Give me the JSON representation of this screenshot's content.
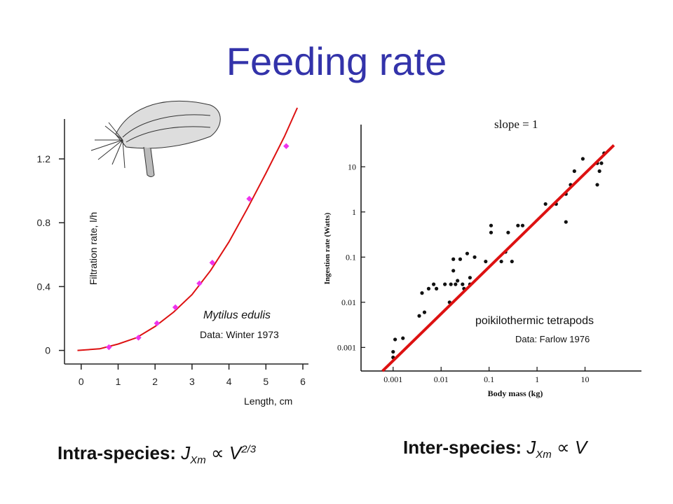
{
  "title": "Feeding rate",
  "colors": {
    "title": "#3333aa",
    "left_points": "#ee33ee",
    "fit_line": "#dd1111"
  },
  "left": {
    "species": "Mytilus edulis",
    "source": "Data: Winter 1973",
    "ylabel": "Filtration rate, l/h",
    "xlabel": "Length, cm",
    "illustration": "mussel-drawing",
    "formula": {
      "prefix": "Intra-species: ",
      "J": "J",
      "sub": "Xm",
      "prop": "∝",
      "V": "V",
      "sup": "2/3"
    }
  },
  "right": {
    "annotation": "slope = 1",
    "group": "poikilothermic tetrapods",
    "source": "Data: Farlow 1976",
    "formula": {
      "prefix": "Inter-species: ",
      "J": "J",
      "sub": "Xm",
      "prop": "∝",
      "V": "V"
    }
  },
  "chart_data": [
    {
      "type": "scatter",
      "xlabel": "Length, cm",
      "ylabel": "Filtration rate, l/h",
      "xlim": [
        -0.3,
        6
      ],
      "ylim": [
        -0.05,
        1.45
      ],
      "x_ticks": [
        "0",
        "1",
        "2",
        "3",
        "4",
        "5",
        "6"
      ],
      "y_ticks": [
        "0",
        "0.4",
        "0.8",
        "1.2"
      ],
      "points": [
        [
          0.75,
          0.02
        ],
        [
          1.55,
          0.08
        ],
        [
          2.05,
          0.17
        ],
        [
          2.55,
          0.27
        ],
        [
          3.2,
          0.42
        ],
        [
          3.55,
          0.55
        ],
        [
          4.55,
          0.95
        ],
        [
          5.55,
          1.28
        ]
      ],
      "fit_curve": [
        [
          -0.1,
          0.0
        ],
        [
          0.5,
          0.01
        ],
        [
          1,
          0.04
        ],
        [
          1.5,
          0.08
        ],
        [
          2,
          0.15
        ],
        [
          2.5,
          0.24
        ],
        [
          3,
          0.35
        ],
        [
          3.5,
          0.5
        ],
        [
          4,
          0.68
        ],
        [
          4.5,
          0.89
        ],
        [
          5,
          1.11
        ],
        [
          5.5,
          1.34
        ],
        [
          5.85,
          1.52
        ]
      ]
    },
    {
      "type": "scatter",
      "scale": "log-log",
      "xlabel": "Body mass (kg)",
      "ylabel": "Ingestion rate (Watts)",
      "x_ticks": [
        "0.001",
        "0.01",
        "0.1",
        "1",
        "10"
      ],
      "y_ticks": [
        "0.001",
        "0.01",
        "0.1",
        "1",
        "10"
      ],
      "xlim": [
        0.0003,
        150
      ],
      "ylim": [
        0.0004,
        80
      ],
      "points": [
        [
          0.001,
          0.0008
        ],
        [
          0.001,
          0.0006
        ],
        [
          0.0011,
          0.0015
        ],
        [
          0.0016,
          0.0016
        ],
        [
          0.0035,
          0.005
        ],
        [
          0.004,
          0.016
        ],
        [
          0.0045,
          0.006
        ],
        [
          0.0055,
          0.02
        ],
        [
          0.007,
          0.025
        ],
        [
          0.008,
          0.02
        ],
        [
          0.012,
          0.025
        ],
        [
          0.015,
          0.01
        ],
        [
          0.016,
          0.025
        ],
        [
          0.018,
          0.05
        ],
        [
          0.018,
          0.09
        ],
        [
          0.02,
          0.025
        ],
        [
          0.022,
          0.03
        ],
        [
          0.025,
          0.09
        ],
        [
          0.028,
          0.025
        ],
        [
          0.03,
          0.02
        ],
        [
          0.035,
          0.12
        ],
        [
          0.04,
          0.025
        ],
        [
          0.04,
          0.035
        ],
        [
          0.05,
          0.1
        ],
        [
          0.085,
          0.08
        ],
        [
          0.11,
          0.5
        ],
        [
          0.11,
          0.35
        ],
        [
          0.18,
          0.08
        ],
        [
          0.22,
          0.13
        ],
        [
          0.25,
          0.35
        ],
        [
          0.3,
          0.08
        ],
        [
          0.4,
          0.5
        ],
        [
          0.5,
          0.5
        ],
        [
          1.5,
          1.5
        ],
        [
          2.5,
          1.5
        ],
        [
          4,
          0.6
        ],
        [
          4,
          2.5
        ],
        [
          5,
          4
        ],
        [
          6,
          8
        ],
        [
          9,
          15
        ],
        [
          18,
          4
        ],
        [
          18,
          12
        ],
        [
          20,
          8
        ],
        [
          22,
          12
        ],
        [
          25,
          20
        ]
      ],
      "fit_line": [
        [
          0.0006,
          0.0003
        ],
        [
          40,
          30
        ]
      ]
    }
  ]
}
